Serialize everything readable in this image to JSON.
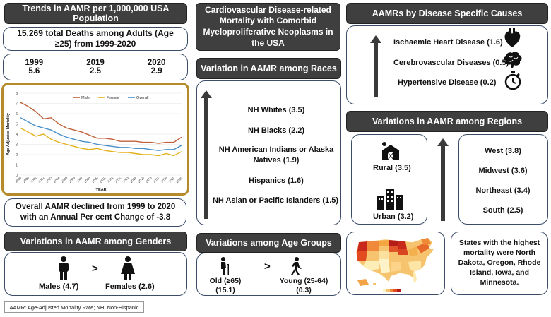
{
  "trends": {
    "title": "Trends in AAMR per 1,000,000 USA Population",
    "deaths": "15,269 total Deaths among Adults (Age ≥25) from 1999-2020",
    "years": [
      {
        "year": "1999",
        "value": "5.6"
      },
      {
        "year": "2019",
        "value": "2.5"
      },
      {
        "year": "2020",
        "value": "2.9"
      }
    ],
    "summary": "Overall AAMR declined from 1999 to 2020 with an Annual Per cent Change of -3.8"
  },
  "chart_data": {
    "type": "line",
    "title": "",
    "xlabel": "YEAR",
    "ylabel": "Age Adjusted Mortality",
    "ylim": [
      0,
      8
    ],
    "yticks": [
      "0",
      "1",
      "2",
      "3",
      "4",
      "5",
      "6",
      "7",
      "8"
    ],
    "categories": [
      "1999",
      "2000",
      "2001",
      "2002",
      "2003",
      "2004",
      "2005",
      "2006",
      "2007",
      "2008",
      "2009",
      "2010",
      "2011",
      "2012",
      "2013",
      "2014",
      "2015",
      "2016",
      "2017",
      "2018",
      "2019",
      "2020"
    ],
    "series": [
      {
        "name": "Male",
        "color": "#c0603a",
        "values": [
          7.1,
          6.7,
          6.2,
          5.5,
          5.6,
          5.0,
          4.6,
          4.4,
          4.2,
          3.9,
          3.6,
          3.6,
          3.5,
          3.3,
          3.3,
          3.3,
          3.2,
          3.2,
          3.1,
          3.2,
          3.2,
          3.7
        ]
      },
      {
        "name": "Female",
        "color": "#e3b21c",
        "values": [
          4.6,
          4.2,
          3.8,
          4.0,
          3.5,
          3.2,
          3.0,
          2.8,
          2.6,
          2.5,
          2.6,
          2.4,
          2.3,
          2.2,
          2.2,
          2.1,
          2.0,
          2.0,
          1.9,
          2.1,
          1.9,
          2.3
        ]
      },
      {
        "name": "Overall",
        "color": "#4a90c8",
        "values": [
          5.6,
          5.2,
          4.8,
          4.6,
          4.4,
          4.0,
          3.7,
          3.5,
          3.3,
          3.2,
          3.0,
          2.9,
          2.8,
          2.7,
          2.7,
          2.6,
          2.6,
          2.5,
          2.4,
          2.5,
          2.5,
          2.9
        ]
      }
    ]
  },
  "center": {
    "title": "Cardiovascular Disease-related Mortality with Comorbid Myeloproliferative Neoplasms in the USA",
    "races_title": "Variation in AAMR among Races",
    "races": [
      "NH Whites (3.5)",
      "NH Blacks (2.2)",
      "NH American Indians or Alaska Natives (1.9)",
      "Hispanics (1.6)",
      "NH Asian or Pacific Islanders (1.5)"
    ]
  },
  "genders": {
    "title": "Variations in AAMR among Genders",
    "male": "Males (4.7)",
    "female": "Females (2.6)",
    "gt": ">"
  },
  "age": {
    "title": "Variations among Age Groups",
    "old": "Old (≥65) (15.1)",
    "young": "Young (25-64) (0.3)",
    "gt": ">"
  },
  "causes": {
    "title": "AAMRs by Disease Specific Causes",
    "items": [
      {
        "label": "Ischaemic Heart Disease (1.6)",
        "icon": "heart-icon"
      },
      {
        "label": "Cerebrovascular Diseases (0.5)",
        "icon": "brain-icon"
      },
      {
        "label": "Hypertensive Disease (0.2)",
        "icon": "stopwatch-icon"
      }
    ]
  },
  "regions": {
    "title": "Variations in AAMR among Regions",
    "rural": "Rural (3.5)",
    "urban": "Urban (3.2)",
    "list": [
      "West (3.8)",
      "Midwest (3.6)",
      "Northeast (3.4)",
      "South (2.5)"
    ]
  },
  "states": {
    "text": "States with the highest mortality were North Dakota, Oregon, Rhode Island, Iowa, and Minnesota."
  },
  "footnote": "AAMR: Age-Adjusted Mortality Rate; NH: Non-Hispanic"
}
